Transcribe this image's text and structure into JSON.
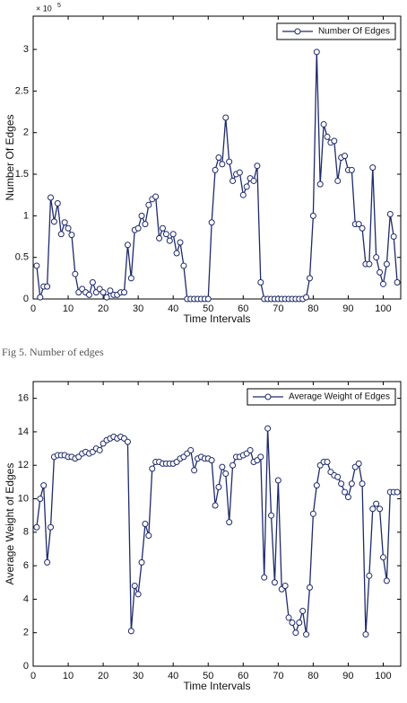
{
  "caption": "Fig 5. Number of edges",
  "chart_data": [
    {
      "type": "line",
      "xlabel": "Time Intervals",
      "ylabel": "Number Of Edges",
      "y_scale_label": "× 10",
      "y_scale_exponent": "5",
      "xlim": [
        0,
        105
      ],
      "xticks": [
        0,
        10,
        20,
        30,
        40,
        50,
        60,
        70,
        80,
        90,
        100
      ],
      "ylim": [
        0,
        3.4
      ],
      "yticks": [
        0,
        0.5,
        1,
        1.5,
        2,
        2.5,
        3
      ],
      "legend": "upper right",
      "x": [
        1,
        2,
        3,
        4,
        5,
        6,
        7,
        8,
        9,
        10,
        11,
        12,
        13,
        14,
        15,
        16,
        17,
        18,
        19,
        20,
        21,
        22,
        23,
        24,
        25,
        26,
        27,
        28,
        29,
        30,
        31,
        32,
        33,
        34,
        35,
        36,
        37,
        38,
        39,
        40,
        41,
        42,
        43,
        44,
        45,
        46,
        47,
        48,
        49,
        50,
        51,
        52,
        53,
        54,
        55,
        56,
        57,
        58,
        59,
        60,
        61,
        62,
        63,
        64,
        65,
        66,
        67,
        68,
        69,
        70,
        71,
        72,
        73,
        74,
        75,
        76,
        77,
        78,
        79,
        80,
        81,
        82,
        83,
        84,
        85,
        86,
        87,
        88,
        89,
        90,
        91,
        92,
        93,
        94,
        95,
        96,
        97,
        98,
        99,
        100,
        101,
        102,
        103,
        104
      ],
      "series": [
        {
          "name": "Number Of Edges",
          "color": "#1f2a6b",
          "values": [
            0.4,
            0.02,
            0.15,
            0.15,
            1.22,
            0.93,
            1.15,
            0.78,
            0.92,
            0.85,
            0.77,
            0.3,
            0.08,
            0.12,
            0.08,
            0.05,
            0.2,
            0.08,
            0.12,
            0.08,
            0.02,
            0.1,
            0.05,
            0.05,
            0.08,
            0.08,
            0.65,
            0.25,
            0.83,
            0.85,
            1.0,
            0.9,
            1.13,
            1.2,
            1.23,
            0.73,
            0.85,
            0.78,
            0.7,
            0.78,
            0.55,
            0.68,
            0.4,
            0,
            0,
            0,
            0,
            0,
            0,
            0,
            0.92,
            1.55,
            1.7,
            1.62,
            2.18,
            1.65,
            1.42,
            1.5,
            1.52,
            1.25,
            1.35,
            1.45,
            1.42,
            1.6,
            0.2,
            0,
            0,
            0,
            0,
            0,
            0,
            0,
            0,
            0,
            0,
            0,
            0,
            0.02,
            0.25,
            1.0,
            2.97,
            1.38,
            2.1,
            1.95,
            1.88,
            1.9,
            1.42,
            1.7,
            1.72,
            1.55,
            1.55,
            0.9,
            0.9,
            0.85,
            0.42,
            0.42,
            1.58,
            0.5,
            0.32,
            0.18,
            0.42,
            1.02,
            0.75,
            0.2
          ]
        }
      ]
    },
    {
      "type": "line",
      "xlabel": "Time Intervals",
      "ylabel": "Average Weight of Edges",
      "xlim": [
        0,
        105
      ],
      "xticks": [
        0,
        10,
        20,
        30,
        40,
        50,
        60,
        70,
        80,
        90,
        100
      ],
      "ylim": [
        0,
        17
      ],
      "yticks": [
        0,
        2,
        4,
        6,
        8,
        10,
        12,
        14,
        16
      ],
      "legend": "upper right",
      "x": [
        1,
        2,
        3,
        4,
        5,
        6,
        7,
        8,
        9,
        10,
        11,
        12,
        13,
        14,
        15,
        16,
        17,
        18,
        19,
        20,
        21,
        22,
        23,
        24,
        25,
        26,
        27,
        28,
        29,
        30,
        31,
        32,
        33,
        34,
        35,
        36,
        37,
        38,
        39,
        40,
        41,
        42,
        43,
        44,
        45,
        46,
        47,
        48,
        49,
        50,
        51,
        52,
        53,
        54,
        55,
        56,
        57,
        58,
        59,
        60,
        61,
        62,
        63,
        64,
        65,
        66,
        67,
        68,
        69,
        70,
        71,
        72,
        73,
        74,
        75,
        76,
        77,
        78,
        79,
        80,
        81,
        82,
        83,
        84,
        85,
        86,
        87,
        88,
        89,
        90,
        91,
        92,
        93,
        94,
        95,
        96,
        97,
        98,
        99,
        100,
        101,
        102,
        103,
        104
      ],
      "series": [
        {
          "name": "Average Weight of Edges",
          "color": "#1f2a6b",
          "values": [
            8.3,
            10,
            10.8,
            6.2,
            8.3,
            12.5,
            12.6,
            12.6,
            12.6,
            12.5,
            12.5,
            12.4,
            12.5,
            12.7,
            12.8,
            12.7,
            12.8,
            13,
            12.9,
            13.3,
            13.5,
            13.6,
            13.7,
            13.6,
            13.7,
            13.6,
            13.4,
            2.1,
            4.8,
            4.3,
            6.2,
            8.5,
            7.8,
            11.8,
            12.2,
            12.2,
            12.1,
            12.1,
            12.1,
            12.1,
            12.2,
            12.4,
            12.5,
            12.7,
            12.9,
            11.7,
            12.4,
            12.5,
            12.4,
            12.4,
            12.3,
            9.6,
            10.7,
            11.9,
            11.5,
            8.6,
            12,
            12.5,
            12.5,
            12.6,
            12.7,
            12.9,
            12.2,
            12.3,
            12.5,
            5.3,
            14.2,
            9,
            5,
            11.1,
            4.6,
            4.8,
            2.9,
            2.6,
            2.0,
            2.6,
            3.3,
            1.9,
            4.7,
            9.1,
            10.8,
            12,
            12.2,
            12.2,
            11.6,
            11.4,
            11.3,
            10.9,
            10.4,
            10.1,
            10.9,
            11.9,
            12.1,
            10.9,
            1.9,
            5.4,
            9.4,
            9.7,
            9.4,
            6.5,
            5.1,
            10.4,
            10.4,
            10.4
          ]
        }
      ]
    }
  ]
}
